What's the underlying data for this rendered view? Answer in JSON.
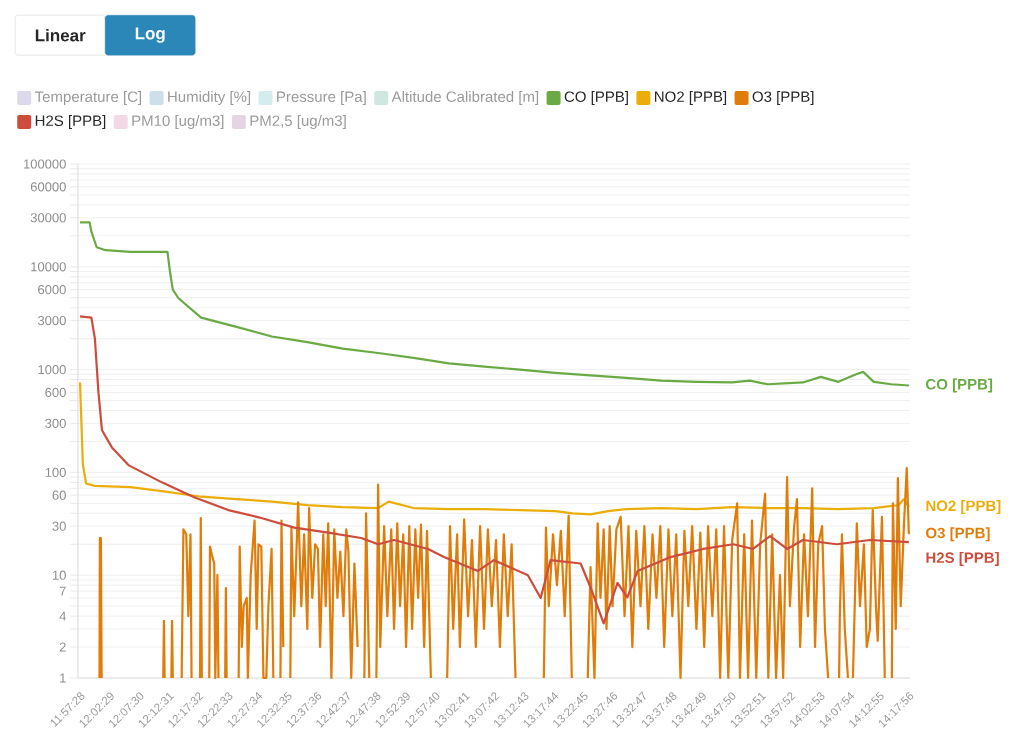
{
  "chart_data": {
    "type": "line",
    "log": "y",
    "grid": "y",
    "legend": "top",
    "annotations": [
      "Linear",
      "Log"
    ],
    "xlim": [
      11.952,
      14.302
    ],
    "xticks": [
      {
        "value": 11.957778,
        "label": "11:57:28"
      },
      {
        "value": 12.041389,
        "label": "12:02:29"
      },
      {
        "value": 12.125,
        "label": "12:07:30"
      },
      {
        "value": 12.208611,
        "label": "12:12:31"
      },
      {
        "value": 12.292222,
        "label": "12:17:32"
      },
      {
        "value": 12.375833,
        "label": "12:22:33"
      },
      {
        "value": 12.459444,
        "label": "12:27:34"
      },
      {
        "value": 12.543056,
        "label": "12:32:35"
      },
      {
        "value": 12.626667,
        "label": "12:37:36"
      },
      {
        "value": 12.710278,
        "label": "12:42:37"
      },
      {
        "value": 12.793889,
        "label": "12:47:38"
      },
      {
        "value": 12.8775,
        "label": "12:52:39"
      },
      {
        "value": 12.961111,
        "label": "12:57:40"
      },
      {
        "value": 13.044722,
        "label": "13:02:41"
      },
      {
        "value": 13.128333,
        "label": "13:07:42"
      },
      {
        "value": 13.211944,
        "label": "13:12:43"
      },
      {
        "value": 13.295556,
        "label": "13:17:44"
      },
      {
        "value": 13.379167,
        "label": "13:22:45"
      },
      {
        "value": 13.462778,
        "label": "13:27:46"
      },
      {
        "value": 13.546389,
        "label": "13:32:47"
      },
      {
        "value": 13.63,
        "label": "13:37:48"
      },
      {
        "value": 13.713611,
        "label": "13:42:49"
      },
      {
        "value": 13.797222,
        "label": "13:47:50"
      },
      {
        "value": 13.880833,
        "label": "13:52:51"
      },
      {
        "value": 13.964444,
        "label": "13:57:52"
      },
      {
        "value": 14.048056,
        "label": "14:02:53"
      },
      {
        "value": 14.131667,
        "label": "14:07:54"
      },
      {
        "value": 14.215278,
        "label": "14:12:55"
      },
      {
        "value": 14.298889,
        "label": "14:17:56"
      }
    ],
    "ylim": [
      1,
      100000
    ],
    "yticks": [
      1,
      2,
      {
        "value": 3,
        "label": null
      },
      4,
      {
        "value": 5,
        "label": null
      },
      {
        "value": 6,
        "label": null
      },
      7,
      {
        "value": 8,
        "label": null
      },
      {
        "value": 9,
        "label": null
      },
      10,
      {
        "value": 20,
        "label": null
      },
      30,
      {
        "value": 40,
        "label": null
      },
      {
        "value": 50,
        "label": null
      },
      60,
      {
        "value": 70,
        "label": null
      },
      {
        "value": 80,
        "label": null
      },
      {
        "value": 90,
        "label": null
      },
      100,
      {
        "value": 200,
        "label": null
      },
      300,
      {
        "value": 400,
        "label": null
      },
      {
        "value": 500,
        "label": null
      },
      600,
      {
        "value": 700,
        "label": null
      },
      {
        "value": 800,
        "label": null
      },
      {
        "value": 900,
        "label": null
      },
      1000,
      {
        "value": 2000,
        "label": null
      },
      3000,
      {
        "value": 4000,
        "label": null
      },
      {
        "value": 5000,
        "label": null
      },
      6000,
      {
        "value": 7000,
        "label": null
      },
      {
        "value": 8000,
        "label": null
      },
      {
        "value": 9000,
        "label": null
      },
      10000,
      {
        "value": 20000,
        "label": null
      },
      30000,
      {
        "value": 40000,
        "label": null
      },
      {
        "value": 50000,
        "label": null
      },
      60000,
      {
        "value": 70000,
        "label": null
      },
      {
        "value": 80000,
        "label": null
      },
      {
        "value": 90000,
        "label": null
      },
      100000
    ],
    "series": [
      {
        "name": "Temperature [C]",
        "color": "#ddd9ec"
      },
      {
        "name": "Humidity [%]",
        "color": "#cfdfe9"
      },
      {
        "name": "Pressure [Pa]",
        "color": "#d5ecef"
      },
      {
        "name": "Altitude Calibrated [m]",
        "color": "#cfe7e0"
      },
      {
        "name": "CO [PPB]",
        "color": "#6aaa45",
        "x": [
          11.958,
          11.985,
          11.99,
          12.005,
          12.03,
          12.1,
          12.15,
          12.205,
          12.212,
          12.22,
          12.235,
          12.25,
          12.3,
          12.4,
          12.5,
          12.6,
          12.7,
          12.8,
          12.9,
          13.0,
          13.1,
          13.2,
          13.3,
          13.4,
          13.5,
          13.6,
          13.7,
          13.8,
          13.85,
          13.9,
          14.0,
          14.05,
          14.1,
          14.15,
          14.17,
          14.2,
          14.25,
          14.299
        ],
        "values": [
          27000,
          27000,
          22000,
          15500,
          14500,
          14000,
          14000,
          14000,
          9000,
          6000,
          5000,
          4500,
          3200,
          2600,
          2100,
          1850,
          1600,
          1450,
          1300,
          1150,
          1070,
          1000,
          930,
          880,
          830,
          780,
          760,
          750,
          780,
          720,
          750,
          850,
          760,
          900,
          950,
          760,
          720,
          700
        ]
      },
      {
        "name": "NO2 [PPB]",
        "color": "#ebad0a",
        "x": [
          11.958,
          11.962,
          11.966,
          11.975,
          12.0,
          12.1,
          12.2,
          12.3,
          12.4,
          12.5,
          12.6,
          12.7,
          12.8,
          12.83,
          12.9,
          13.0,
          13.1,
          13.2,
          13.3,
          13.35,
          13.4,
          13.45,
          13.5,
          13.6,
          13.7,
          13.8,
          13.9,
          14.0,
          14.1,
          14.2,
          14.27,
          14.285,
          14.299
        ],
        "values": [
          750,
          300,
          120,
          78,
          74,
          72,
          65,
          58,
          55,
          52,
          48,
          46,
          45,
          52,
          45,
          44,
          44,
          43,
          42,
          40,
          39,
          42,
          44,
          45,
          44,
          46,
          45,
          45,
          44,
          45,
          48,
          55,
          46
        ]
      },
      {
        "name": "O3 [PPB]",
        "color": "#e07c0a",
        "x": [
          12.013,
          12.014,
          12.017,
          12.019,
          12.021,
          12.191,
          12.193,
          12.195,
          12.197,
          12.199,
          12.214,
          12.216,
          12.218,
          12.22,
          12.222,
          12.242,
          12.245,
          12.25,
          12.258,
          12.264,
          12.27,
          12.273,
          12.276,
          12.294,
          12.297,
          12.299,
          12.302,
          12.305,
          12.321,
          12.323,
          12.325,
          12.33,
          12.337,
          12.34,
          12.346,
          12.349,
          12.352,
          12.366,
          12.368,
          12.37,
          12.372,
          12.375,
          12.403,
          12.406,
          12.409,
          12.415,
          12.42,
          12.429,
          12.432,
          12.44,
          12.451,
          12.457,
          12.462,
          12.47,
          12.476,
          12.484,
          12.49,
          12.499,
          12.504,
          12.508,
          12.521,
          12.524,
          12.527,
          12.532,
          12.535,
          12.549,
          12.552,
          12.555,
          12.563,
          12.574,
          12.583,
          12.591,
          12.6,
          12.605,
          12.614,
          12.622,
          12.63,
          12.636,
          12.645,
          12.652,
          12.659,
          12.668,
          12.676,
          12.685,
          12.693,
          12.702,
          12.71,
          12.716,
          12.724,
          12.733,
          12.742,
          12.745,
          12.758,
          12.761,
          12.766,
          12.775,
          12.778,
          12.792,
          12.795,
          12.8,
          12.806,
          12.817,
          12.826,
          12.837,
          12.845,
          12.854,
          12.862,
          12.871,
          12.879,
          12.888,
          12.896,
          12.905,
          12.913,
          12.921,
          12.93,
          12.938,
          12.949,
          12.952,
          12.992,
          12.995,
          13.003,
          13.012,
          13.023,
          13.031,
          13.043,
          13.054,
          13.065,
          13.076,
          13.088,
          13.099,
          13.11,
          13.121,
          13.133,
          13.144,
          13.155,
          13.166,
          13.177,
          13.188,
          13.192,
          13.265,
          13.268,
          13.274,
          13.282,
          13.294,
          13.305,
          13.316,
          13.327,
          13.338,
          13.347,
          13.35,
          13.389,
          13.392,
          13.4,
          13.411,
          13.42,
          13.428,
          13.437,
          13.445,
          13.454,
          13.462,
          13.473,
          13.485,
          13.496,
          13.507,
          13.518,
          13.529,
          13.541,
          13.552,
          13.563,
          13.575,
          13.586,
          13.597,
          13.608,
          13.62,
          13.631,
          13.642,
          13.654,
          13.665,
          13.676,
          13.687,
          13.699,
          13.71,
          13.721,
          13.732,
          13.744,
          13.755,
          13.766,
          13.777,
          13.789,
          13.8,
          13.814,
          13.822,
          13.834,
          13.845,
          13.856,
          13.868,
          13.879,
          13.893,
          13.902,
          13.913,
          13.924,
          13.935,
          13.944,
          13.955,
          13.963,
          13.975,
          13.983,
          13.992,
          14.003,
          14.014,
          14.026,
          14.034,
          14.043,
          14.054,
          14.062,
          14.071,
          14.074,
          14.099,
          14.102,
          14.104,
          14.11,
          14.118,
          14.127,
          14.13,
          14.138,
          14.141,
          14.152,
          14.161,
          14.172,
          14.18,
          14.189,
          14.197,
          14.206,
          14.211,
          14.223,
          14.231,
          14.235,
          14.248,
          14.251,
          14.254,
          14.262,
          14.268,
          14.276,
          14.285,
          14.293,
          14.299
        ],
        "values": [
          1,
          23,
          23,
          1,
          null,
          null,
          1,
          3.6,
          1,
          null,
          null,
          1,
          3.6,
          1,
          null,
          null,
          1,
          28,
          25,
          4,
          25,
          1,
          null,
          null,
          1,
          36,
          1,
          null,
          null,
          1,
          19,
          16,
          13,
          1,
          10,
          1,
          null,
          null,
          1,
          7.5,
          1,
          null,
          null,
          1,
          19,
          2,
          5,
          6,
          1,
          10,
          34,
          3,
          20,
          19,
          1,
          1,
          5,
          18,
          1,
          null,
          null,
          1,
          34,
          2,
          null,
          null,
          1,
          29,
          4,
          51,
          5,
          25,
          3,
          45,
          6,
          20,
          18,
          2,
          25,
          5,
          32,
          1,
          28,
          6,
          17,
          4,
          28,
          17,
          1,
          13,
          2,
          null,
          null,
          1,
          40,
          1,
          null,
          null,
          1,
          76,
          2,
          30,
          4,
          28,
          3,
          32,
          5,
          25,
          2,
          30,
          3,
          28,
          6,
          31,
          2,
          27,
          1,
          null,
          null,
          1,
          30,
          3,
          25,
          2,
          35,
          4,
          22,
          2,
          30,
          3,
          28,
          5,
          22,
          2,
          25,
          4,
          20,
          1,
          null,
          null,
          1,
          29,
          5,
          25,
          8,
          27,
          4,
          38,
          1,
          null,
          null,
          1,
          12,
          1,
          32,
          6,
          28,
          3,
          30,
          5,
          28,
          37,
          4,
          30,
          2,
          27,
          5,
          30,
          3,
          25,
          6,
          30,
          2,
          28,
          4,
          25,
          1,
          27,
          5,
          30,
          3,
          26,
          2,
          30,
          4,
          28,
          1,
          30,
          1,
          22,
          50,
          1,
          25,
          1,
          34,
          1,
          20,
          62,
          1,
          25,
          1,
          10,
          1,
          90,
          5,
          30,
          55,
          2,
          25,
          4,
          70,
          2,
          20,
          30,
          3,
          1,
          null,
          null,
          1,
          3.9,
          25,
          3,
          1,
          null,
          null,
          1,
          32,
          5,
          20,
          2,
          3,
          43,
          5,
          2.3,
          37,
          1,
          null,
          null,
          1,
          50,
          3,
          88,
          5,
          30,
          110,
          25
        ]
      },
      {
        "name": "H2S [PPB]",
        "color": "#cc4d3c",
        "x": [
          11.958,
          11.99,
          12.0,
          12.01,
          12.02,
          12.048,
          12.096,
          12.189,
          12.282,
          12.377,
          12.47,
          12.563,
          12.659,
          12.752,
          12.8,
          12.845,
          12.941,
          12.986,
          13.082,
          13.127,
          13.223,
          13.259,
          13.287,
          13.372,
          13.4,
          13.437,
          13.476,
          13.504,
          13.533,
          13.626,
          13.718,
          13.803,
          13.859,
          13.907,
          13.955,
          14.0,
          14.096,
          14.189,
          14.299
        ],
        "values": [
          3300,
          3200,
          2000,
          600,
          257,
          175,
          117,
          80,
          57,
          43,
          36,
          29,
          26,
          23,
          20,
          22,
          18,
          15,
          11,
          14,
          10,
          6,
          14,
          13,
          7.6,
          3.4,
          8.4,
          6.1,
          11,
          15,
          18,
          20,
          18,
          24,
          18,
          22,
          20,
          22,
          21
        ]
      },
      {
        "name": "PM10 [ug/m3]",
        "color": "#f2d9e5"
      },
      {
        "name": "PM2,5 [ug/m3]",
        "color": "#e5d5e3"
      }
    ]
  }
}
